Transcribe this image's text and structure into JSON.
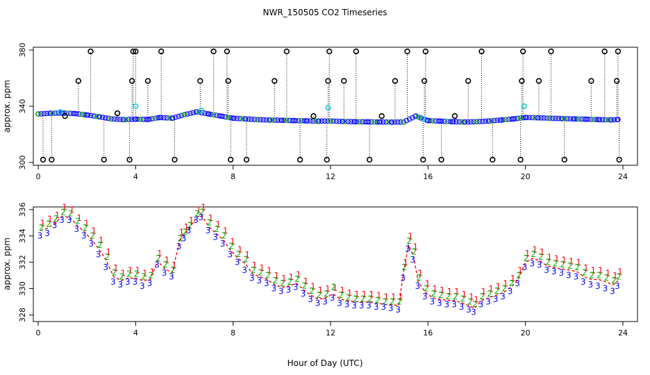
{
  "page_title": "NWR_150505  CO2 Timeseries",
  "chart_data": [
    {
      "type": "scatter",
      "panel": "top",
      "xlabel": "",
      "ylabel": "approx. ppm",
      "xlim": [
        -0.2,
        24.6
      ],
      "ylim": [
        298,
        382
      ],
      "xticks": [
        "0",
        "4",
        "8",
        "12",
        "16",
        "20",
        "24"
      ],
      "yticks": [
        "300",
        "340",
        "380"
      ],
      "ytick_values": [
        300,
        340,
        380
      ],
      "baseline": {
        "name": "CO2 (blue circles)",
        "x": [
          0,
          0.5,
          1,
          1.5,
          2,
          2.5,
          3,
          3.5,
          4,
          4.5,
          5,
          5.5,
          6,
          6.5,
          7,
          7.5,
          8,
          8.5,
          9,
          9.5,
          10,
          10.5,
          11,
          11.5,
          12,
          12.5,
          13,
          13.5,
          14,
          14.5,
          15,
          15.5,
          16,
          16.5,
          17,
          17.5,
          18,
          18.5,
          19,
          19.5,
          20,
          20.5,
          21,
          21.5,
          22,
          22.5,
          23,
          23.5,
          23.8
        ],
        "y": [
          334.5,
          335.0,
          335.2,
          334.8,
          333.8,
          332.5,
          331.0,
          330.5,
          330.8,
          330.6,
          332.0,
          331.5,
          334.0,
          336.0,
          334.5,
          333.0,
          331.5,
          331.0,
          330.5,
          330.2,
          330.0,
          329.8,
          329.6,
          329.4,
          329.5,
          329.2,
          329.0,
          328.9,
          328.8,
          328.7,
          328.8,
          333.0,
          329.8,
          329.4,
          329.0,
          328.8,
          329.0,
          329.5,
          330.2,
          331.0,
          332.0,
          331.8,
          331.5,
          331.2,
          331.0,
          330.8,
          330.5,
          330.3,
          330.6
        ]
      },
      "outliers": {
        "name": "Spikes (black circles)",
        "x": [
          0.2,
          0.55,
          1.1,
          1.65,
          2.15,
          2.7,
          3.25,
          3.75,
          3.85,
          3.9,
          4.0,
          4.5,
          5.05,
          5.6,
          6.65,
          7.2,
          7.75,
          7.8,
          7.9,
          8.55,
          9.7,
          10.2,
          10.75,
          11.3,
          11.85,
          11.9,
          11.95,
          12.55,
          13.05,
          13.6,
          14.1,
          14.65,
          15.15,
          15.8,
          15.85,
          15.9,
          16.55,
          17.1,
          17.65,
          18.2,
          18.65,
          19.8,
          19.85,
          19.9,
          20.55,
          21.05,
          21.6,
          22.7,
          23.25,
          23.75,
          23.8,
          23.85
        ],
        "y": [
          302,
          302,
          333,
          358,
          379,
          302,
          335,
          302,
          358,
          379,
          379,
          358,
          379,
          302,
          358,
          379,
          379,
          358,
          302,
          302,
          358,
          379,
          302,
          333,
          302,
          358,
          379,
          358,
          379,
          302,
          333,
          358,
          379,
          302,
          358,
          379,
          302,
          333,
          358,
          379,
          302,
          302,
          358,
          379,
          358,
          379,
          302,
          358,
          379,
          358,
          379,
          302
        ]
      },
      "flagged": {
        "name": "Flagged (cyan)",
        "x": [
          0.9,
          4.0,
          6.7,
          11.9,
          15.8,
          19.95
        ],
        "y": [
          336,
          340,
          337,
          339,
          331,
          340
        ]
      }
    },
    {
      "type": "scatter",
      "panel": "bottom",
      "xlabel": "Hour of Day (UTC)",
      "ylabel": "approx. ppm",
      "xlim": [
        -0.2,
        24.6
      ],
      "ylim": [
        327.5,
        336.2
      ],
      "xticks": [
        "0",
        "4",
        "8",
        "12",
        "16",
        "20",
        "24"
      ],
      "yticks": [
        "328",
        "330",
        "332",
        "334",
        "336"
      ],
      "ytick_values": [
        328,
        330,
        332,
        334,
        336
      ],
      "x": [
        0.1,
        0.4,
        0.7,
        1.0,
        1.3,
        1.6,
        1.9,
        2.2,
        2.5,
        2.8,
        3.1,
        3.4,
        3.7,
        4.0,
        4.3,
        4.6,
        4.9,
        5.2,
        5.5,
        5.8,
        6.0,
        6.2,
        6.5,
        6.7,
        7.0,
        7.3,
        7.6,
        7.9,
        8.2,
        8.5,
        8.8,
        9.1,
        9.4,
        9.7,
        10.0,
        10.3,
        10.6,
        10.9,
        11.2,
        11.5,
        11.8,
        12.1,
        12.4,
        12.7,
        13.0,
        13.3,
        13.6,
        13.9,
        14.2,
        14.5,
        14.8,
        15.0,
        15.2,
        15.4,
        15.6,
        15.9,
        16.2,
        16.5,
        16.8,
        17.1,
        17.4,
        17.7,
        17.9,
        18.2,
        18.5,
        18.8,
        19.1,
        19.4,
        19.7,
        20.0,
        20.3,
        20.6,
        20.9,
        21.2,
        21.5,
        21.8,
        22.1,
        22.4,
        22.7,
        23.0,
        23.3,
        23.6,
        23.8
      ],
      "series": [
        {
          "name": "1",
          "color": "#ff0000",
          "values": [
            334.6,
            334.9,
            335.2,
            335.8,
            335.6,
            335.0,
            334.6,
            334.0,
            333.3,
            332.4,
            331.2,
            330.8,
            331.0,
            331.0,
            330.8,
            330.9,
            332.3,
            331.8,
            331.4,
            333.9,
            334.3,
            334.8,
            335.6,
            335.8,
            335.0,
            334.5,
            334.0,
            333.2,
            332.6,
            332.2,
            331.4,
            331.2,
            331.0,
            330.6,
            330.4,
            330.5,
            330.7,
            330.2,
            329.8,
            329.5,
            329.6,
            329.7,
            329.5,
            329.3,
            329.2,
            329.2,
            329.2,
            329.1,
            329.0,
            329.0,
            329.0,
            331.6,
            333.6,
            332.8,
            330.8,
            330.0,
            329.6,
            329.5,
            329.4,
            329.4,
            329.2,
            329.0,
            328.8,
            329.4,
            329.6,
            329.8,
            330.0,
            330.4,
            331.0,
            332.3,
            332.6,
            332.4,
            332.0,
            331.9,
            331.8,
            331.7,
            331.6,
            331.2,
            331.0,
            331.0,
            330.8,
            330.6,
            330.9
          ]
        },
        {
          "name": "2",
          "color": "#00aa00",
          "values": [
            334.4,
            334.7,
            335.1,
            335.6,
            335.5,
            334.9,
            334.4,
            333.8,
            333.1,
            332.2,
            331.0,
            330.7,
            330.9,
            330.9,
            330.7,
            330.8,
            332.1,
            331.6,
            331.2,
            333.6,
            334.1,
            334.6,
            335.5,
            335.6,
            334.8,
            334.3,
            333.8,
            333.0,
            332.4,
            332.0,
            331.2,
            331.0,
            330.8,
            330.4,
            330.2,
            330.3,
            330.5,
            330.0,
            329.6,
            329.3,
            329.4,
            329.9,
            329.3,
            329.1,
            329.0,
            329.0,
            329.0,
            328.9,
            328.8,
            328.8,
            328.8,
            331.4,
            333.4,
            332.6,
            330.6,
            329.8,
            329.4,
            329.3,
            329.2,
            329.2,
            329.0,
            328.8,
            328.6,
            329.2,
            329.4,
            329.6,
            329.8,
            330.2,
            330.8,
            332.1,
            332.4,
            332.2,
            331.8,
            331.7,
            331.6,
            331.5,
            331.4,
            331.0,
            330.8,
            330.8,
            330.6,
            330.4,
            330.7
          ]
        },
        {
          "name": "3",
          "color": "#0000ff",
          "values": [
            334.0,
            334.2,
            334.8,
            335.2,
            335.2,
            334.5,
            334.0,
            333.4,
            332.6,
            331.6,
            330.5,
            330.3,
            330.5,
            330.5,
            330.2,
            330.4,
            331.8,
            331.2,
            330.9,
            333.2,
            333.8,
            334.4,
            335.2,
            335.4,
            334.4,
            333.9,
            333.4,
            332.6,
            332.0,
            331.4,
            330.8,
            330.6,
            330.4,
            330.0,
            329.8,
            329.9,
            330.1,
            329.6,
            329.2,
            328.9,
            329.0,
            329.3,
            328.9,
            328.8,
            328.7,
            328.7,
            328.7,
            328.6,
            328.6,
            328.5,
            328.4,
            330.8,
            333.0,
            332.2,
            330.2,
            329.4,
            329.0,
            328.9,
            328.8,
            328.8,
            328.6,
            328.4,
            328.2,
            328.8,
            329.0,
            329.2,
            329.4,
            329.8,
            330.4,
            331.6,
            331.9,
            331.8,
            331.4,
            331.3,
            331.2,
            331.0,
            330.9,
            330.5,
            330.3,
            330.2,
            330.0,
            329.8,
            330.2
          ]
        }
      ],
      "fit": {
        "name": "smoothed (red dashed)",
        "color": "#ff0000",
        "values": [
          334.4,
          334.6,
          335.0,
          335.5,
          335.4,
          334.8,
          334.3,
          333.7,
          333.0,
          332.1,
          330.9,
          330.6,
          330.8,
          330.8,
          330.6,
          330.7,
          332.1,
          331.5,
          331.2,
          333.6,
          334.1,
          334.6,
          335.4,
          335.6,
          334.7,
          334.2,
          333.7,
          332.9,
          332.3,
          331.9,
          331.1,
          330.9,
          330.7,
          330.3,
          330.1,
          330.2,
          330.4,
          329.9,
          329.5,
          329.2,
          329.3,
          329.6,
          329.2,
          329.1,
          329.0,
          329.0,
          329.0,
          328.9,
          328.8,
          328.8,
          328.7,
          331.3,
          333.3,
          332.5,
          330.5,
          329.7,
          329.3,
          329.2,
          329.1,
          329.1,
          328.9,
          328.7,
          328.5,
          329.1,
          329.3,
          329.5,
          329.7,
          330.1,
          330.7,
          332.0,
          332.3,
          332.1,
          331.7,
          331.6,
          331.5,
          331.4,
          331.3,
          330.9,
          330.7,
          330.7,
          330.5,
          330.3,
          330.6
        ]
      }
    }
  ]
}
